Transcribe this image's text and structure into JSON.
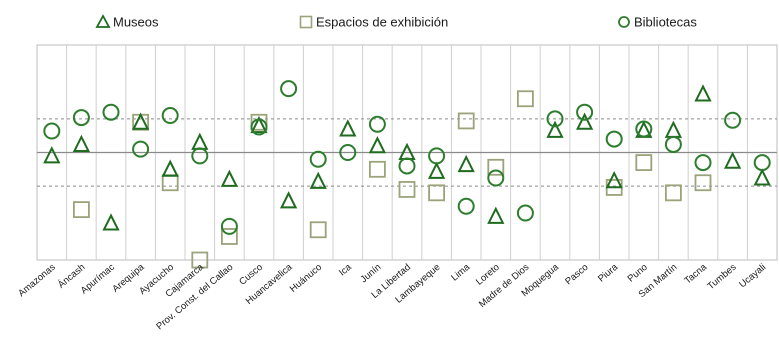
{
  "chart_data": {
    "type": "scatter",
    "title": "",
    "xlabel": "",
    "ylabel": "",
    "ylim": [
      -1.6,
      1.6
    ],
    "grid": "vertical category lines",
    "reference_lines": [
      {
        "value": 0,
        "style": "solid"
      },
      {
        "value": 0.5,
        "style": "dashed"
      },
      {
        "value": -0.5,
        "style": "dashed"
      }
    ],
    "legend_position": "top",
    "categories": [
      "Amazonas",
      "Áncash",
      "Apurímac",
      "Arequipa",
      "Ayacucho",
      "Cajamarca",
      "Prov. Const. del Callao",
      "Cusco",
      "Huancavelica",
      "Huánuco",
      "Ica",
      "Junín",
      "La Libertad",
      "Lambayeque",
      "Lima",
      "Loreto",
      "Madre de Dios",
      "Moquegua",
      "Pasco",
      "Piura",
      "Puno",
      "San Martín",
      "Tacna",
      "Tumbes",
      "Ucayali"
    ],
    "series": [
      {
        "name": "Museos",
        "marker": "triangle",
        "color": "#1f6b1f",
        "values": [
          -0.05,
          0.12,
          -1.05,
          0.45,
          -0.25,
          0.15,
          -0.4,
          0.4,
          -0.72,
          -0.43,
          0.35,
          0.1,
          0.0,
          -0.28,
          -0.18,
          -0.95,
          null,
          0.33,
          0.45,
          -0.42,
          0.33,
          0.33,
          0.87,
          -0.13,
          -0.38
        ]
      },
      {
        "name": "Espacios de exhibición",
        "marker": "square",
        "color": "#9aa37a",
        "values": [
          null,
          -0.85,
          null,
          0.45,
          -0.45,
          -1.6,
          -1.25,
          0.45,
          null,
          -1.15,
          null,
          -0.25,
          -0.55,
          -0.6,
          0.47,
          -0.22,
          0.8,
          null,
          null,
          -0.52,
          -0.15,
          -0.6,
          -0.45,
          null,
          null
        ]
      },
      {
        "name": "Bibliotecas",
        "marker": "circle",
        "color": "#2e7d2e",
        "values": [
          0.32,
          0.52,
          0.6,
          0.05,
          0.55,
          -0.05,
          -1.1,
          0.38,
          0.95,
          -0.1,
          0.0,
          0.42,
          -0.2,
          -0.05,
          -0.8,
          -0.38,
          -0.9,
          0.5,
          0.6,
          0.2,
          0.35,
          0.12,
          -0.15,
          0.48,
          -0.15
        ]
      }
    ]
  }
}
